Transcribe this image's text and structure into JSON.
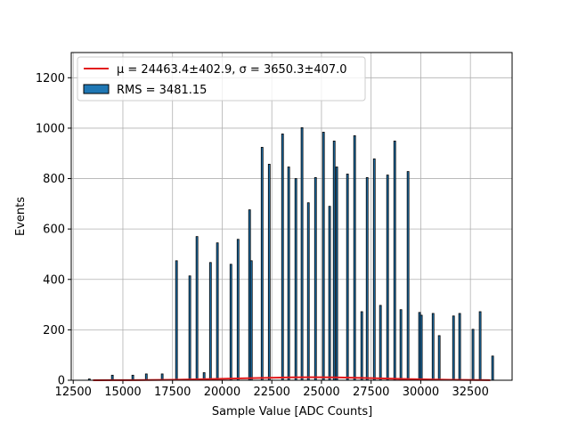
{
  "chart_data": {
    "type": "bar",
    "xlabel": "Sample Value [ADC Counts]",
    "ylabel": "Events",
    "xlim": [
      12400,
      34600
    ],
    "ylim": [
      0,
      1300
    ],
    "xticks": [
      12500,
      15000,
      17500,
      20000,
      22500,
      25000,
      27500,
      30000,
      32500
    ],
    "yticks": [
      0,
      200,
      400,
      600,
      800,
      1000,
      1200
    ],
    "grid": true,
    "legend": "upper left",
    "series": [
      {
        "name": "μ = 24463.4±402.9, σ = 3650.3±407.0",
        "type": "line",
        "color": "#e31a1c",
        "x": [
          13500,
          15500,
          17500,
          19500,
          21500,
          23500,
          24500,
          25500,
          27500,
          29500,
          31500,
          33500
        ],
        "values": [
          0.13,
          0.59,
          1.9,
          4.8,
          8.6,
          11.6,
          12,
          11.5,
          8.5,
          4.6,
          1.9,
          0.6
        ]
      },
      {
        "name": "RMS = 3481.15",
        "type": "bar",
        "color": "#1f77b4",
        "edgecolor": "#000000",
        "x": [
          13310,
          14470,
          15500,
          16180,
          16980,
          17700,
          18370,
          18730,
          19090,
          19410,
          19760,
          20440,
          20800,
          21380,
          21470,
          22010,
          22370,
          23040,
          23350,
          23710,
          24020,
          24340,
          24700,
          25100,
          25410,
          25640,
          25770,
          26310,
          26670,
          27030,
          27300,
          27660,
          27970,
          28330,
          28690,
          29000,
          29360,
          29940,
          30030,
          30620,
          30930,
          31650,
          31960,
          32630,
          32990,
          33620
        ],
        "values": [
          5,
          20,
          20,
          25,
          25,
          474,
          414,
          570,
          30,
          467,
          545,
          460,
          559,
          676,
          474,
          924,
          857,
          977,
          846,
          800,
          1002,
          704,
          804,
          984,
          690,
          949,
          846,
          818,
          970,
          272,
          804,
          878,
          297,
          814,
          949,
          280,
          828,
          269,
          258,
          265,
          177,
          255,
          265,
          202,
          272,
          96
        ]
      }
    ]
  }
}
